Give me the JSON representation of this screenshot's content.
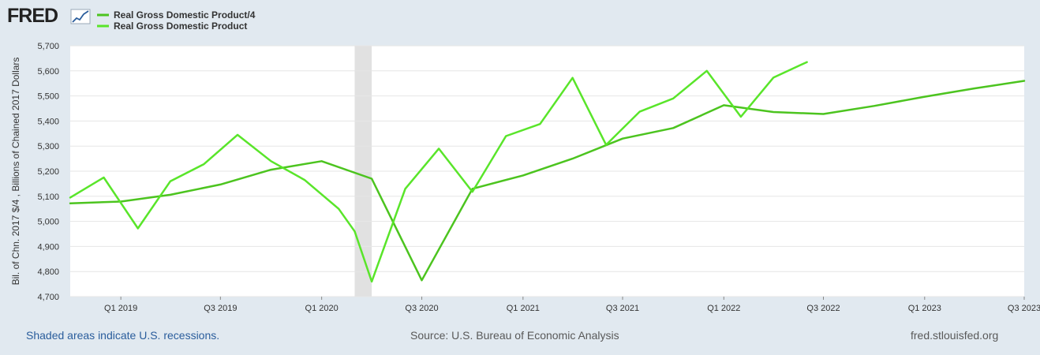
{
  "brand": {
    "logo_text": "FRED",
    "footer_left": "Shaded areas indicate U.S. recessions.",
    "footer_center": "Source: U.S. Bureau of Economic Analysis",
    "footer_right": "fred.stlouisfed.org"
  },
  "colors": {
    "background": "#e1e9f0",
    "plot_bg": "#ffffff",
    "grid": "#e6e6e6",
    "recession": "#e1e1e1",
    "series1": "#4cc41f",
    "series2": "#59e52a"
  },
  "chart_data": {
    "type": "line",
    "ylabel": "Bil. of Chn. 2017 $/4 , Billions of Chained 2017 Dollars",
    "ylim": [
      4700,
      5700
    ],
    "yticks": [
      4700,
      4800,
      4900,
      5000,
      5100,
      5200,
      5300,
      5400,
      5500,
      5600,
      5700
    ],
    "ytick_labels": [
      "4,700",
      "4,800",
      "4,900",
      "5,000",
      "5,100",
      "5,200",
      "5,300",
      "5,400",
      "5,500",
      "5,600",
      "5,700"
    ],
    "x": [
      "2018-10-01",
      "2018-11-01",
      "2018-12-01",
      "2019-01-01",
      "2019-02-01",
      "2019-03-01",
      "2019-04-01",
      "2019-05-01",
      "2019-06-01",
      "2019-07-01",
      "2019-08-01",
      "2019-09-01",
      "2019-10-01",
      "2019-11-01",
      "2019-12-01",
      "2020-01-01",
      "2020-02-01",
      "2020-03-01",
      "2020-04-01",
      "2020-05-01",
      "2020-06-01",
      "2020-07-01",
      "2020-08-01",
      "2020-09-01",
      "2020-10-01",
      "2020-11-01",
      "2020-12-01",
      "2021-01-01",
      "2021-02-01",
      "2021-03-01",
      "2021-04-01",
      "2021-05-01",
      "2021-06-01",
      "2021-07-01",
      "2021-08-01",
      "2021-09-01",
      "2021-10-01",
      "2021-11-01",
      "2021-12-01",
      "2022-01-01",
      "2022-02-01",
      "2022-03-01",
      "2022-04-01",
      "2022-05-01",
      "2022-06-01",
      "2022-07-01",
      "2022-08-01",
      "2022-09-01",
      "2022-10-01",
      "2022-11-01",
      "2022-12-01",
      "2023-01-01",
      "2023-02-01",
      "2023-03-01",
      "2023-04-01",
      "2023-05-01",
      "2023-06-01",
      "2023-07-01"
    ],
    "x_ticks": [
      {
        "date": "2019-01-01",
        "label": "Q1 2019"
      },
      {
        "date": "2019-07-01",
        "label": "Q3 2019"
      },
      {
        "date": "2020-01-01",
        "label": "Q1 2020"
      },
      {
        "date": "2020-07-01",
        "label": "Q3 2020"
      },
      {
        "date": "2021-01-01",
        "label": "Q1 2021"
      },
      {
        "date": "2021-07-01",
        "label": "Q3 2021"
      },
      {
        "date": "2022-01-01",
        "label": "Q1 2022"
      },
      {
        "date": "2022-07-01",
        "label": "Q3 2022"
      },
      {
        "date": "2023-01-01",
        "label": "Q1 2023"
      },
      {
        "date": "2023-07-01",
        "label": "Q3 2023"
      }
    ],
    "recessions": [
      [
        "2020-03-01",
        "2020-04-01"
      ]
    ],
    "series": [
      {
        "name": "Real Gross Domestic Product/4",
        "points": [
          [
            "2018-10-01",
            5072
          ],
          [
            "2019-01-01",
            5079
          ],
          [
            "2019-04-01",
            5106
          ],
          [
            "2019-07-01",
            5147
          ],
          [
            "2019-10-01",
            5206
          ],
          [
            "2020-01-01",
            5240
          ],
          [
            "2020-04-01",
            5170
          ],
          [
            "2020-07-01",
            4765
          ],
          [
            "2020-10-01",
            5130
          ],
          [
            "2021-01-01",
            5183
          ],
          [
            "2021-04-01",
            5250
          ],
          [
            "2021-07-01",
            5330
          ],
          [
            "2021-10-01",
            5372
          ],
          [
            "2022-01-01",
            5463
          ],
          [
            "2022-04-01",
            5436
          ],
          [
            "2022-07-01",
            5428
          ],
          [
            "2022-10-01",
            5460
          ],
          [
            "2023-01-01",
            5497
          ],
          [
            "2023-04-01",
            5530
          ],
          [
            "2023-07-01",
            5560
          ],
          [
            "2023-07-01",
            5560
          ]
        ]
      },
      {
        "name": "Real Gross Domestic Product",
        "points": [
          [
            "2018-10-01",
            5095
          ],
          [
            "2018-12-01",
            5175
          ],
          [
            "2019-02-01",
            4972
          ],
          [
            "2019-04-01",
            5160
          ],
          [
            "2019-06-01",
            5228
          ],
          [
            "2019-08-01",
            5345
          ],
          [
            "2019-10-01",
            5240
          ],
          [
            "2019-12-01",
            5165
          ],
          [
            "2020-02-01",
            5050
          ],
          [
            "2020-03-01",
            4960
          ],
          [
            "2020-04-01",
            4760
          ],
          [
            "2020-06-01",
            5130
          ],
          [
            "2020-08-01",
            5290
          ],
          [
            "2020-10-01",
            5118
          ],
          [
            "2020-12-01",
            5340
          ],
          [
            "2021-02-01",
            5388
          ],
          [
            "2021-04-01",
            5572
          ],
          [
            "2021-06-01",
            5305
          ],
          [
            "2021-08-01",
            5437
          ],
          [
            "2021-10-01",
            5490
          ],
          [
            "2021-12-01",
            5600
          ],
          [
            "2022-02-01",
            5417
          ],
          [
            "2022-04-01",
            5573
          ],
          [
            "2022-06-01",
            5635
          ]
        ]
      }
    ]
  }
}
